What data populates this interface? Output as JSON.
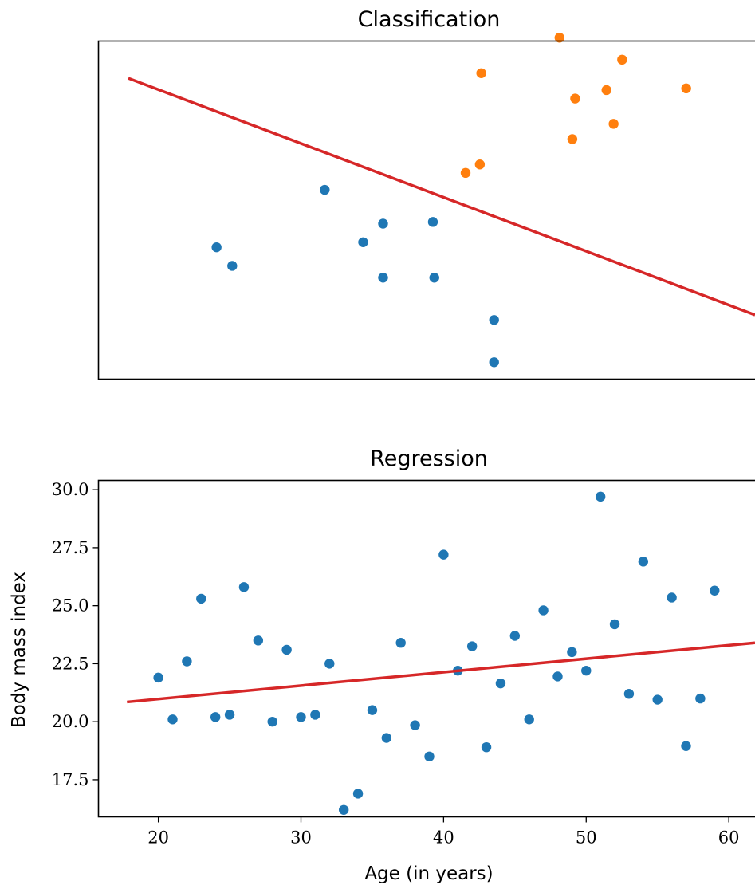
{
  "chart_data": [
    {
      "type": "scatter",
      "title": "Classification",
      "xlabel": "",
      "ylabel": "",
      "xlim": [
        15.5,
        62
      ],
      "ylim": [
        0,
        10
      ],
      "show_ticks": false,
      "grid": false,
      "legend": "none",
      "colors": {
        "class_0": "#1f77b4",
        "class_1": "#ff7f0e",
        "line": "#d62728"
      },
      "series": [
        {
          "color_key": "class_0",
          "x": [
            23.8,
            24.9,
            31.4,
            34.1,
            35.5,
            35.5,
            39.0,
            39.1,
            43.3,
            43.3
          ],
          "y": [
            3.9,
            3.35,
            5.6,
            4.05,
            4.6,
            3.0,
            4.65,
            3.0,
            1.75,
            0.5
          ]
        },
        {
          "color_key": "class_1",
          "x": [
            41.3,
            42.3,
            42.4,
            47.9,
            48.8,
            49.0,
            51.2,
            51.7,
            52.3,
            56.8
          ],
          "y": [
            6.1,
            6.35,
            9.05,
            10.1,
            7.1,
            8.3,
            8.55,
            7.55,
            9.45,
            8.6
          ]
        }
      ],
      "line": {
        "x": [
          17.6,
          62
        ],
        "y": [
          8.9,
          1.9
        ]
      }
    },
    {
      "type": "scatter",
      "title": "Regression",
      "xlabel": "Age (in years)",
      "ylabel": "Body mass index",
      "xlim": [
        15.8,
        62.2
      ],
      "ylim": [
        15.9,
        30.4
      ],
      "xticks": [
        20,
        30,
        40,
        50,
        60
      ],
      "yticks": [
        17.5,
        20.0,
        22.5,
        25.0,
        27.5,
        30.0
      ],
      "ytick_labels": [
        "17.5",
        "20.0",
        "22.5",
        "25.0",
        "27.5",
        "30.0"
      ],
      "grid": false,
      "legend": "none",
      "colors": {
        "points": "#1f77b4",
        "line": "#d62728"
      },
      "series": [
        {
          "color_key": "points",
          "x": [
            20,
            21,
            22,
            23,
            24,
            25,
            26,
            27,
            28,
            29,
            30,
            31,
            32,
            33,
            34,
            35,
            36,
            37,
            38,
            39,
            40,
            41,
            42,
            43,
            44,
            45,
            46,
            47,
            48,
            49,
            50,
            51,
            52,
            53,
            54,
            55,
            56,
            57,
            58,
            59
          ],
          "y": [
            21.9,
            20.1,
            22.6,
            25.3,
            20.2,
            20.3,
            25.8,
            23.5,
            20.0,
            23.1,
            20.2,
            20.3,
            22.5,
            16.2,
            16.9,
            20.5,
            19.3,
            23.4,
            19.85,
            18.5,
            27.2,
            22.2,
            23.25,
            18.9,
            21.65,
            23.7,
            20.1,
            24.8,
            21.95,
            23.0,
            22.2,
            29.7,
            24.2,
            21.2,
            26.9,
            20.95,
            25.35,
            18.95,
            21.0,
            25.65
          ]
        }
      ],
      "line": {
        "x": [
          17.8,
          62
        ],
        "y": [
          20.85,
          23.4
        ]
      }
    }
  ]
}
